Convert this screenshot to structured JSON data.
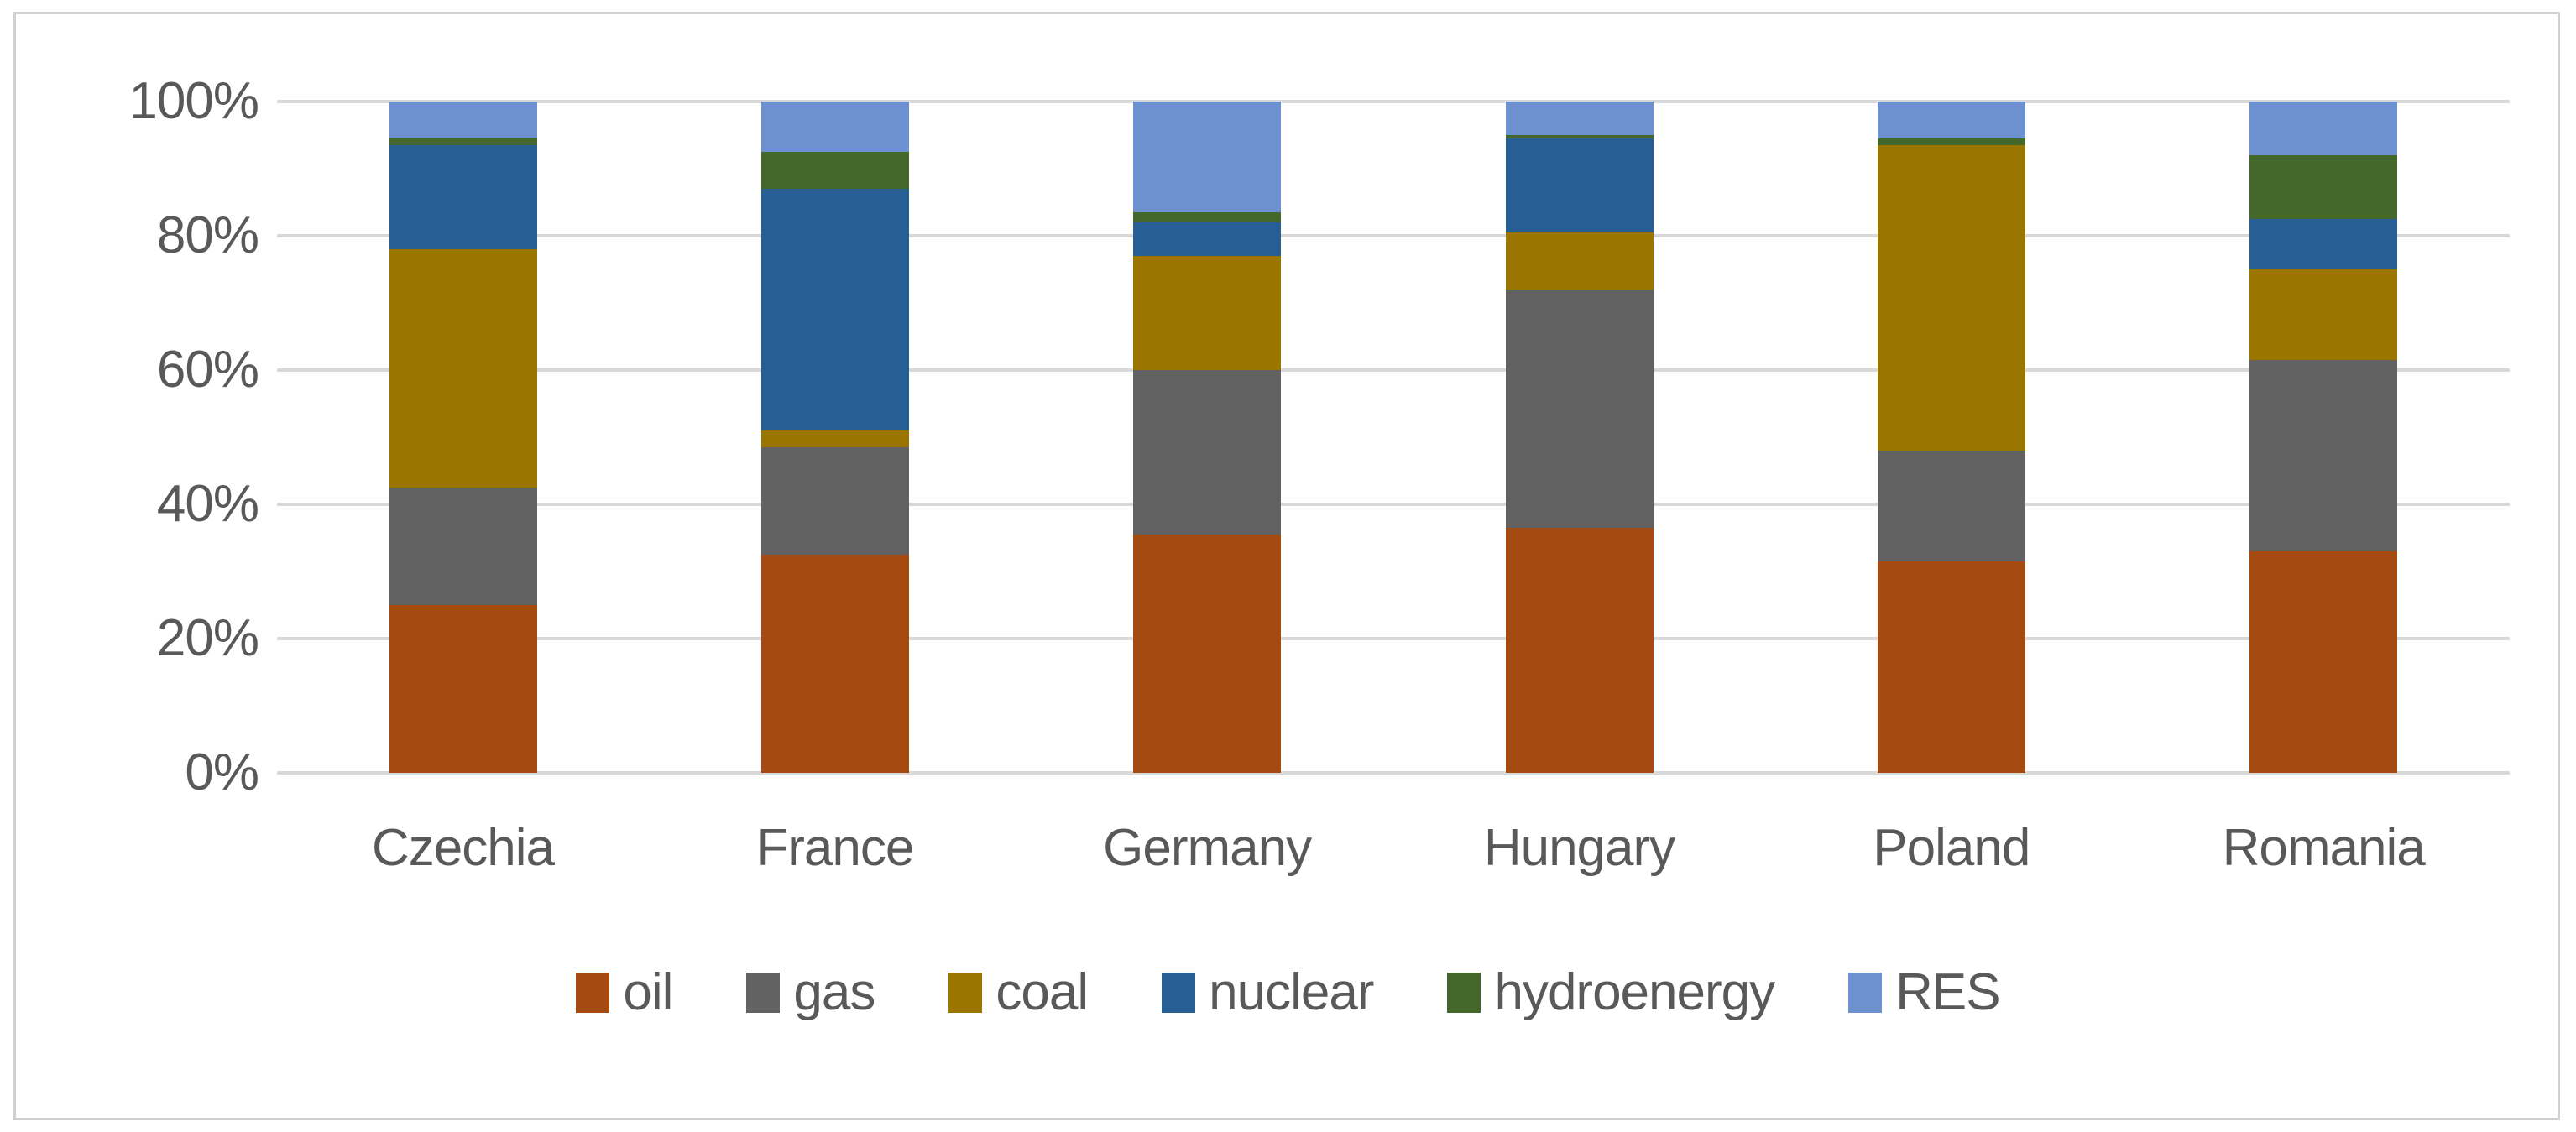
{
  "chart_data": {
    "type": "bar",
    "stacked": true,
    "percent_stacked": true,
    "title": "",
    "xlabel": "",
    "ylabel": "",
    "ylim": [
      0,
      100
    ],
    "y_tick_step": 20,
    "y_tick_labels": [
      "0%",
      "20%",
      "40%",
      "60%",
      "80%",
      "100%"
    ],
    "grid": true,
    "legend_position": "bottom",
    "categories": [
      "Czechia",
      "France",
      "Germany",
      "Hungary",
      "Poland",
      "Romania"
    ],
    "series": [
      {
        "name": "oil",
        "color": "#A54B11",
        "values": [
          25,
          32.5,
          35.5,
          36.5,
          31.5,
          33
        ]
      },
      {
        "name": "gas",
        "color": "#626262",
        "values": [
          17.5,
          16,
          24.5,
          35.5,
          16.5,
          28.5
        ]
      },
      {
        "name": "coal",
        "color": "#9A7601",
        "values": [
          35.5,
          2.5,
          17,
          8.5,
          45.5,
          13.5
        ]
      },
      {
        "name": "nuclear",
        "color": "#275F94",
        "values": [
          15.5,
          36,
          5,
          14,
          0,
          7.5
        ]
      },
      {
        "name": "hydroenergy",
        "color": "#44682B",
        "values": [
          1,
          5.5,
          1.5,
          0.5,
          1,
          9.5
        ]
      },
      {
        "name": "RES",
        "color": "#6D90D1",
        "values": [
          5.5,
          7.5,
          16.5,
          5,
          5.5,
          8
        ]
      }
    ]
  },
  "styles": {
    "text_color": "#595959",
    "gridline_color": "#D9D9D9",
    "frame_border_color": "#D2D0D0",
    "background_color": "#FFFFFF"
  }
}
